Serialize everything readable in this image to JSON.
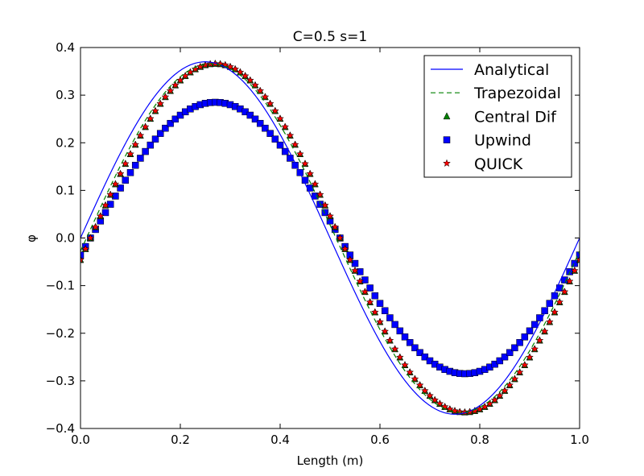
{
  "chart_data": {
    "type": "line",
    "title": "C=0.5 s=1",
    "xlabel": "Length (m)",
    "ylabel": "φ",
    "xlim": [
      0.0,
      1.0
    ],
    "ylim": [
      -0.4,
      0.4
    ],
    "xticks": [
      0.0,
      0.2,
      0.4,
      0.6,
      0.8,
      1.0
    ],
    "xtick_labels": [
      "0.0",
      "0.2",
      "0.4",
      "0.6",
      "0.8",
      "1.0"
    ],
    "yticks": [
      0.4,
      0.3,
      0.2,
      0.1,
      0.0,
      -0.1,
      -0.2,
      -0.3,
      -0.4
    ],
    "ytick_labels": [
      "0.4",
      "0.3",
      "0.2",
      "0.1",
      "0.0",
      "−0.1",
      "−0.2",
      "−0.3",
      "−0.4"
    ],
    "grid": false,
    "legend_position": "top-right",
    "series": [
      {
        "name": "Analytical",
        "style": "solid-line",
        "color": "#0000ff",
        "amplitude": 0.37,
        "period": 1.0,
        "phase_shift": 0.0
      },
      {
        "name": "Trapezoidal",
        "style": "dashed-line",
        "color": "#008000",
        "amplitude": 0.366,
        "period": 1.0,
        "phase_shift": 0.012
      },
      {
        "name": "Central Dif",
        "style": "triangle-markers",
        "color": "#008000",
        "amplitude": 0.366,
        "period": 1.0,
        "phase_shift": 0.02
      },
      {
        "name": "Upwind",
        "style": "square-markers",
        "color": "#0000ff",
        "amplitude": 0.285,
        "period": 1.0,
        "phase_shift": 0.02
      },
      {
        "name": "QUICK",
        "style": "star-markers",
        "color": "#ff0000",
        "amplitude": 0.366,
        "period": 1.0,
        "phase_shift": 0.02
      }
    ],
    "marker_x_start": 0.0,
    "marker_x_step": 0.01
  }
}
